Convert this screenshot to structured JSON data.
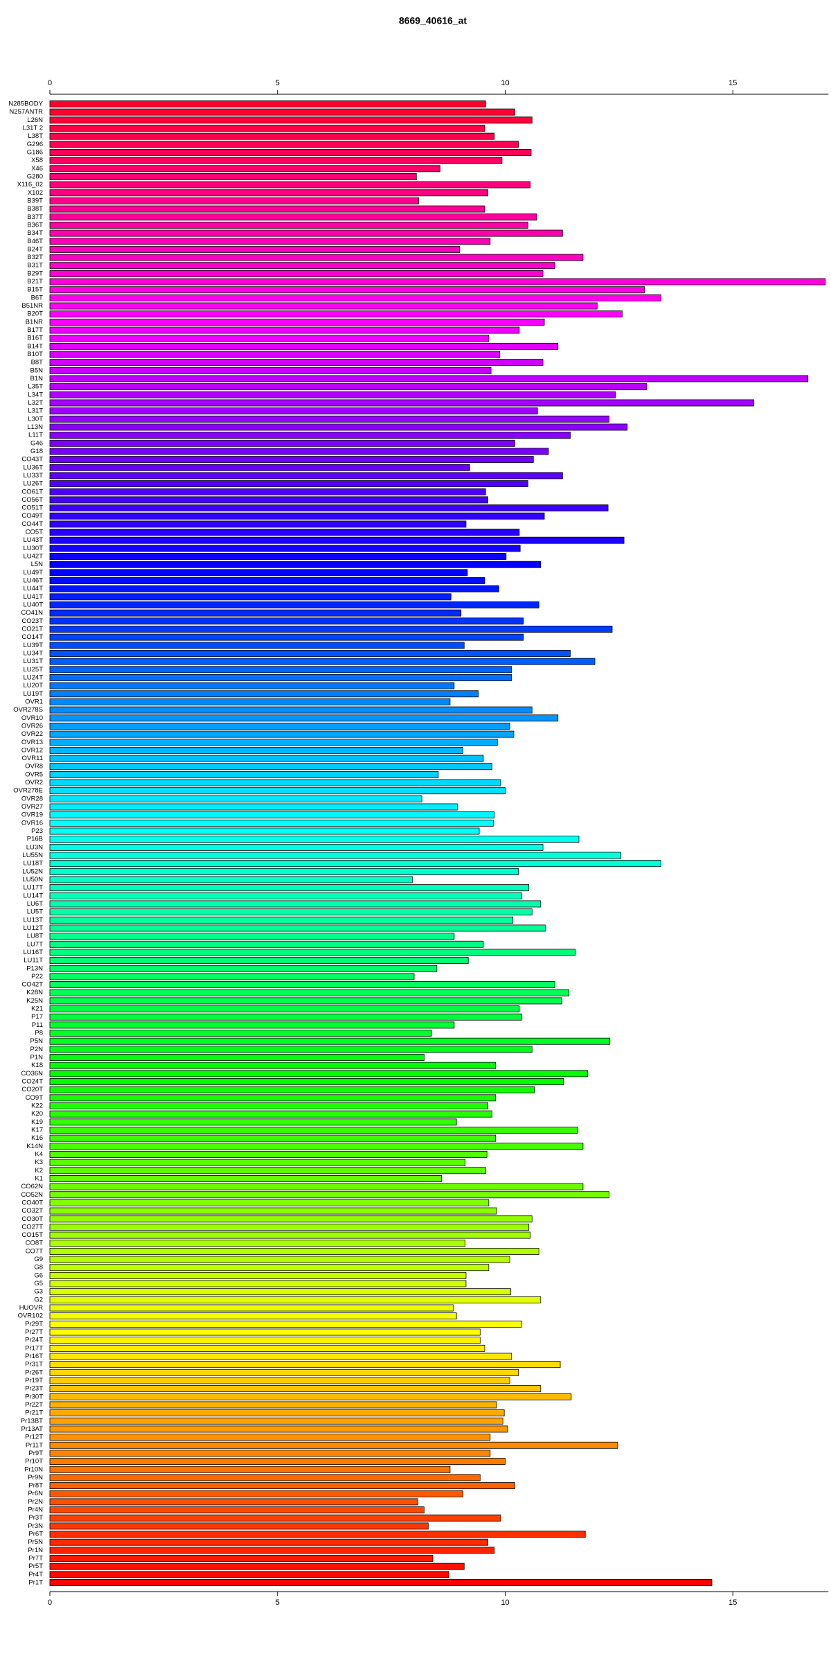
{
  "chart_data": {
    "type": "barh",
    "title": "8669_40616_at",
    "categories": [
      "N285BODY",
      "N257ANTR",
      "L26N",
      "L31T 2",
      "L38T",
      "G296",
      "G186",
      "X58",
      "X46",
      "G280",
      "X116_02",
      "X102",
      "B39T",
      "B38T",
      "B37T",
      "B36T",
      "B34T",
      "B46T",
      "B24T",
      "B32T",
      "B31T",
      "B29T",
      "B21T",
      "B15T",
      "B6T",
      "B51NR",
      "B20T",
      "B1NR",
      "B17T",
      "B16T",
      "B14T",
      "B10T",
      "B8T",
      "B5N",
      "B1N",
      "L35T",
      "L34T",
      "L32T",
      "L31T",
      "L30T",
      "L13N",
      "L11T",
      "G46",
      "G18",
      "CO43T",
      "LU36T",
      "LU33T",
      "LU26T",
      "CO61T",
      "CO56T",
      "CO51T",
      "CO49T",
      "CO44T",
      "CO5T",
      "LU43T",
      "LU30T",
      "LU42T",
      "L5N",
      "LU49T",
      "LU46T",
      "LU44T",
      "LU41T",
      "LU40T",
      "CO41N",
      "CO23T",
      "CO21T",
      "CO14T",
      "LU39T",
      "LU34T",
      "LU31T",
      "LU25T",
      "LU24T",
      "LU20T",
      "LU19T",
      "OVR1",
      "OVR278S",
      "OVR10",
      "OVR26",
      "OVR22",
      "OVR13",
      "OVR12",
      "OVR11",
      "OVR8",
      "OVR5",
      "OVR2",
      "OVR278E",
      "OVR28",
      "OVR27",
      "OVR19",
      "OVR16",
      "P23",
      "P16B",
      "LU3N",
      "LU55N",
      "LU18T",
      "LU52N",
      "LU50N",
      "LU17T",
      "LU14T",
      "LU6T",
      "LU5T",
      "LU13T",
      "LU12T",
      "LU8T",
      "LU7T",
      "LU16T",
      "LU11T",
      "P13N",
      "P22",
      "CO42T",
      "K28N",
      "K25N",
      "K21",
      "P17",
      "P11",
      "P8",
      "P5N",
      "P2N",
      "P1N",
      "K18",
      "CO36N",
      "CO24T",
      "CO20T",
      "CO9T",
      "K22",
      "K20",
      "K19",
      "K17",
      "K16",
      "K14N",
      "K4",
      "K3",
      "K2",
      "K1",
      "CO62N",
      "CO52N",
      "CO40T",
      "CO32T",
      "CO30T",
      "CO27T",
      "CO15T",
      "CO8T",
      "CO7T",
      "G9",
      "G8",
      "G6",
      "G5",
      "G3",
      "G2",
      "HUOVR",
      "OVR102",
      "Pr29T",
      "Pr27T",
      "Pr24T",
      "Pr17T",
      "Pr16T",
      "Pr31T",
      "Pr26T",
      "Pr19T",
      "Pr23T",
      "Pr30T",
      "Pr22T",
      "Pr21T",
      "Pr13BT",
      "Pr13AT",
      "Pr12T",
      "Pr11T",
      "Pr9T",
      "Pr10T",
      "Pr10N",
      "Pr9N",
      "Pr8T",
      "Pr6N",
      "Pr2N",
      "Pr4N",
      "Pr3T",
      "Pr3N",
      "Pr6T",
      "Pr5N",
      "Pr1N",
      "Pr7T",
      "Pr5T",
      "Pr4T",
      "Pr1T"
    ],
    "values": [
      9.57,
      10.21,
      10.59,
      9.55,
      9.76,
      10.29,
      10.57,
      9.93,
      8.57,
      8.05,
      10.55,
      9.62,
      8.1,
      9.55,
      10.69,
      10.5,
      11.26,
      9.67,
      9.0,
      11.71,
      11.09,
      10.83,
      17.03,
      13.06,
      13.42,
      12.02,
      12.57,
      10.86,
      10.31,
      9.64,
      11.16,
      9.88,
      10.83,
      9.69,
      16.65,
      13.11,
      12.42,
      15.46,
      10.71,
      12.28,
      12.68,
      11.43,
      10.21,
      10.95,
      10.62,
      9.22,
      11.26,
      10.5,
      9.57,
      9.62,
      12.26,
      10.86,
      9.14,
      10.31,
      12.61,
      10.33,
      10.02,
      10.78,
      9.17,
      9.55,
      9.86,
      8.81,
      10.74,
      9.03,
      10.4,
      12.35,
      10.4,
      9.1,
      11.43,
      11.97,
      10.14,
      10.14,
      8.88,
      9.41,
      8.79,
      10.59,
      11.16,
      10.1,
      10.19,
      9.83,
      9.07,
      9.52,
      9.71,
      8.53,
      9.9,
      10.0,
      8.17,
      8.95,
      9.76,
      9.74,
      9.43,
      11.62,
      10.83,
      12.54,
      13.42,
      10.29,
      7.96,
      10.52,
      10.36,
      10.78,
      10.59,
      10.17,
      10.88,
      8.88,
      9.52,
      11.54,
      9.19,
      8.5,
      8.0,
      11.09,
      11.4,
      11.24,
      10.31,
      10.36,
      8.88,
      8.38,
      12.3,
      10.59,
      8.22,
      9.79,
      11.81,
      11.28,
      10.64,
      9.79,
      9.62,
      9.71,
      8.93,
      11.59,
      9.79,
      11.71,
      9.6,
      9.12,
      9.57,
      8.6,
      11.71,
      12.28,
      9.64,
      9.81,
      10.59,
      10.52,
      10.55,
      9.12,
      10.74,
      10.1,
      9.64,
      9.14,
      9.14,
      10.12,
      10.78,
      8.86,
      8.93,
      10.36,
      9.45,
      9.45,
      9.55,
      10.14,
      11.21,
      10.29,
      10.1,
      10.78,
      11.45,
      9.81,
      9.98,
      9.95,
      10.05,
      9.67,
      12.47,
      9.67,
      10.0,
      8.79,
      9.45,
      10.21,
      9.07,
      8.08,
      8.22,
      9.9,
      8.31,
      11.76,
      9.62,
      9.76,
      8.41,
      9.1,
      8.76,
      14.54
    ],
    "colors": [
      "hsl(350,100%,50%)",
      "hsl(348,100%,50%)",
      "hsl(346,100%,50%)",
      "hsl(344,100%,50%)",
      "hsl(342,100%,50%)",
      "hsl(340,100%,50%)",
      "hsl(339,100%,50%)",
      "hsl(337,100%,50%)",
      "hsl(335,100%,50%)",
      "hsl(333,100%,50%)",
      "hsl(331,100%,50%)",
      "hsl(329,100%,50%)",
      "hsl(327,100%,50%)",
      "hsl(325,100%,50%)",
      "hsl(323,100%,50%)",
      "hsl(321,100%,50%)",
      "hsl(319,100%,50%)",
      "hsl(317,100%,50%)",
      "hsl(316,100%,50%)",
      "hsl(314,100%,50%)",
      "hsl(312,100%,50%)",
      "hsl(310,100%,50%)",
      "hsl(308,100%,50%)",
      "hsl(306,100%,50%)",
      "hsl(304,100%,50%)",
      "hsl(302,100%,50%)",
      "hsl(300,100%,50%)",
      "hsl(298,100%,50%)",
      "hsl(296,100%,50%)",
      "hsl(295,100%,50%)",
      "hsl(293,100%,50%)",
      "hsl(291,100%,50%)",
      "hsl(289,100%,50%)",
      "hsl(287,100%,50%)",
      "hsl(285,100%,50%)",
      "hsl(283,100%,50%)",
      "hsl(281,100%,50%)",
      "hsl(279,100%,50%)",
      "hsl(277,100%,50%)",
      "hsl(275,100%,50%)",
      "hsl(273,100%,50%)",
      "hsl(272,100%,50%)",
      "hsl(270,100%,50%)",
      "hsl(268,100%,50%)",
      "hsl(266,100%,50%)",
      "hsl(264,100%,50%)",
      "hsl(262,100%,50%)",
      "hsl(260,100%,50%)",
      "hsl(258,100%,50%)",
      "hsl(256,100%,50%)",
      "hsl(254,100%,50%)",
      "hsl(252,100%,50%)",
      "hsl(251,100%,50%)",
      "hsl(249,100%,50%)",
      "hsl(247,100%,50%)",
      "hsl(245,100%,50%)",
      "hsl(243,100%,50%)",
      "hsl(241,100%,50%)",
      "hsl(239,100%,50%)",
      "hsl(237,100%,50%)",
      "hsl(235,100%,50%)",
      "hsl(233,100%,50%)",
      "hsl(231,100%,50%)",
      "hsl(230,100%,50%)",
      "hsl(228,100%,50%)",
      "hsl(226,100%,50%)",
      "hsl(224,100%,50%)",
      "hsl(222,100%,50%)",
      "hsl(220,100%,50%)",
      "hsl(218,100%,50%)",
      "hsl(216,100%,50%)",
      "hsl(214,100%,50%)",
      "hsl(212,100%,50%)",
      "hsl(210,100%,50%)",
      "hsl(208,100%,50%)",
      "hsl(207,100%,50%)",
      "hsl(205,100%,50%)",
      "hsl(203,100%,50%)",
      "hsl(201,100%,50%)",
      "hsl(199,100%,50%)",
      "hsl(197,100%,50%)",
      "hsl(195,100%,50%)",
      "hsl(193,100%,50%)",
      "hsl(191,100%,50%)",
      "hsl(189,100%,50%)",
      "hsl(187,100%,50%)",
      "hsl(186,100%,50%)",
      "hsl(184,100%,50%)",
      "hsl(182,100%,50%)",
      "hsl(180,100%,50%)",
      "hsl(178,100%,50%)",
      "hsl(176,100%,50%)",
      "hsl(174,100%,50%)",
      "hsl(172,100%,50%)",
      "hsl(170,100%,50%)",
      "hsl(168,100%,50%)",
      "hsl(166,100%,50%)",
      "hsl(164,100%,50%)",
      "hsl(163,100%,50%)",
      "hsl(161,100%,50%)",
      "hsl(159,100%,50%)",
      "hsl(157,100%,50%)",
      "hsl(155,100%,50%)",
      "hsl(153,100%,50%)",
      "hsl(151,100%,50%)",
      "hsl(149,100%,50%)",
      "hsl(147,100%,50%)",
      "hsl(145,100%,50%)",
      "hsl(143,100%,50%)",
      "hsl(142,100%,50%)",
      "hsl(140,100%,50%)",
      "hsl(138,100%,50%)",
      "hsl(136,100%,50%)",
      "hsl(134,100%,50%)",
      "hsl(132,100%,50%)",
      "hsl(130,100%,50%)",
      "hsl(128,100%,50%)",
      "hsl(126,100%,50%)",
      "hsl(124,100%,50%)",
      "hsl(122,100%,50%)",
      "hsl(120,100%,50%)",
      "hsl(119,100%,50%)",
      "hsl(117,100%,50%)",
      "hsl(115,100%,50%)",
      "hsl(113,100%,50%)",
      "hsl(111,100%,50%)",
      "hsl(109,100%,50%)",
      "hsl(107,100%,50%)",
      "hsl(105,100%,50%)",
      "hsl(103,100%,50%)",
      "hsl(101,100%,50%)",
      "hsl(99,100%,50%)",
      "hsl(98,100%,50%)",
      "hsl(96,100%,50%)",
      "hsl(94,100%,50%)",
      "hsl(92,100%,50%)",
      "hsl(90,100%,50%)",
      "hsl(88,100%,50%)",
      "hsl(86,100%,50%)",
      "hsl(84,100%,50%)",
      "hsl(82,100%,50%)",
      "hsl(80,100%,50%)",
      "hsl(78,100%,50%)",
      "hsl(77,100%,50%)",
      "hsl(75,100%,50%)",
      "hsl(73,100%,50%)",
      "hsl(71,100%,50%)",
      "hsl(69,100%,50%)",
      "hsl(67,100%,50%)",
      "hsl(65,100%,50%)",
      "hsl(63,100%,50%)",
      "hsl(61,100%,50%)",
      "hsl(59,100%,50%)",
      "hsl(57,100%,50%)",
      "hsl(55,100%,50%)",
      "hsl(54,100%,50%)",
      "hsl(52,100%,50%)",
      "hsl(50,100%,50%)",
      "hsl(48,100%,50%)",
      "hsl(46,100%,50%)",
      "hsl(44,100%,50%)",
      "hsl(42,100%,50%)",
      "hsl(40,100%,50%)",
      "hsl(38,100%,50%)",
      "hsl(36,100%,50%)",
      "hsl(34,100%,50%)",
      "hsl(33,100%,50%)",
      "hsl(31,100%,50%)",
      "hsl(29,100%,50%)",
      "hsl(27,100%,50%)",
      "hsl(25,100%,50%)",
      "hsl(23,100%,50%)",
      "hsl(21,100%,50%)",
      "hsl(19,100%,50%)",
      "hsl(17,100%,50%)",
      "hsl(15,100%,50%)",
      "hsl(13,100%,50%)",
      "hsl(11,100%,50%)",
      "hsl(10,100%,50%)",
      "hsl(8,100%,50%)",
      "hsl(6,100%,50%)",
      "hsl(4,100%,50%)",
      "hsl(2,100%,50%)",
      "hsl(0,100%,50%)"
    ],
    "xlim": [
      0,
      17.1
    ],
    "xticks": [
      0,
      5,
      10,
      15
    ]
  }
}
